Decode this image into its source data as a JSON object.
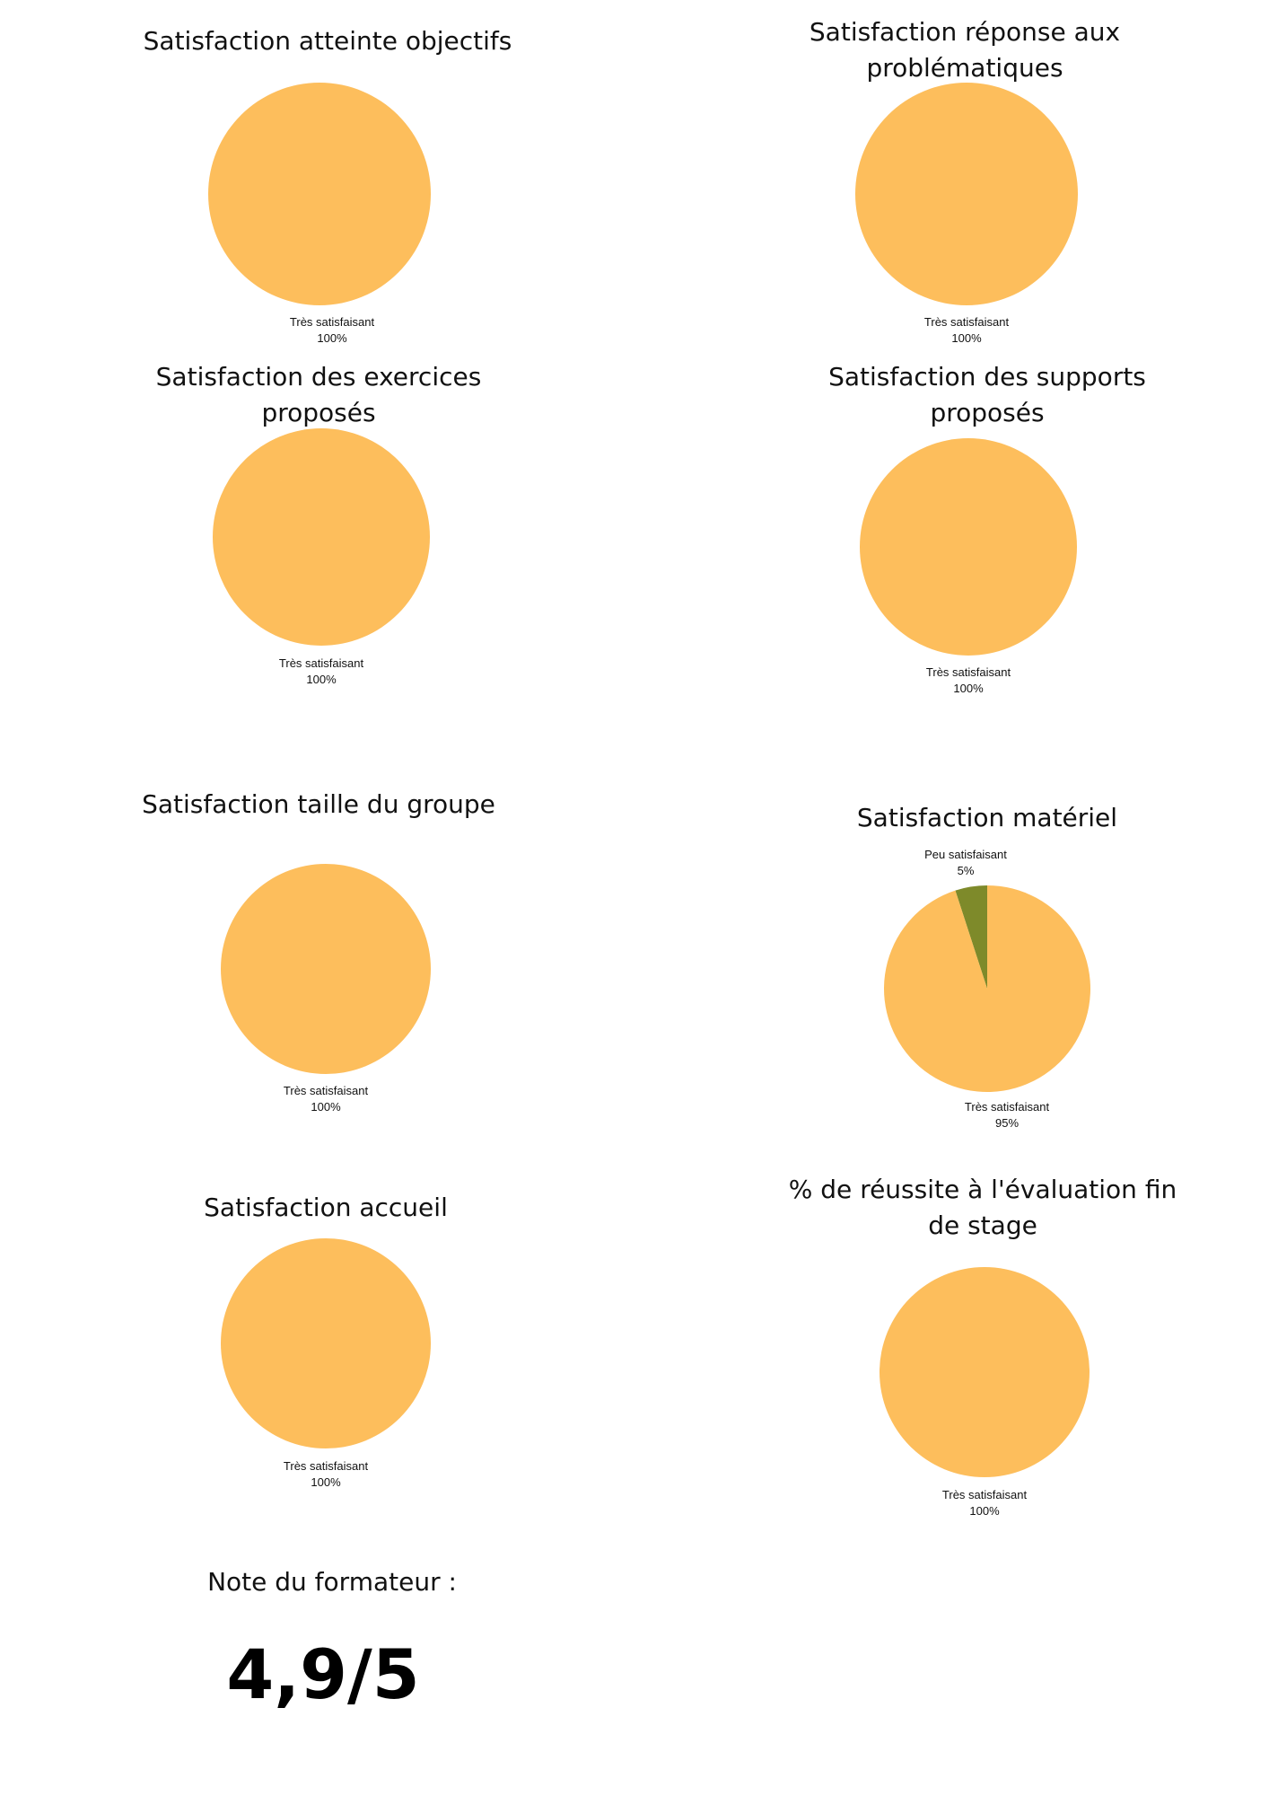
{
  "colors": {
    "tres_satisfaisant": "#FDBE5C",
    "peu_satisfaisant": "#7E8A2A"
  },
  "chart_data": [
    {
      "type": "pie",
      "title": "Satisfaction atteinte objectifs",
      "slices": [
        {
          "label": "Très satisfaisant",
          "value": 100,
          "value_label": "100%",
          "color": "#FDBE5C"
        }
      ]
    },
    {
      "type": "pie",
      "title": "Satisfaction réponse aux problématiques",
      "slices": [
        {
          "label": "Très satisfaisant",
          "value": 100,
          "value_label": "100%",
          "color": "#FDBE5C"
        }
      ]
    },
    {
      "type": "pie",
      "title": "Satisfaction des exercices proposés",
      "slices": [
        {
          "label": "Très satisfaisant",
          "value": 100,
          "value_label": "100%",
          "color": "#FDBE5C"
        }
      ]
    },
    {
      "type": "pie",
      "title": "Satisfaction des supports proposés",
      "slices": [
        {
          "label": "Très satisfaisant",
          "value": 100,
          "value_label": "100%",
          "color": "#FDBE5C"
        }
      ]
    },
    {
      "type": "pie",
      "title": "Satisfaction taille du groupe",
      "slices": [
        {
          "label": "Très satisfaisant",
          "value": 100,
          "value_label": "100%",
          "color": "#FDBE5C"
        }
      ]
    },
    {
      "type": "pie",
      "title": "Satisfaction matériel",
      "slices": [
        {
          "label": "Peu satisfaisant",
          "value": 5,
          "value_label": "5%",
          "color": "#7E8A2A"
        },
        {
          "label": "Très satisfaisant",
          "value": 95,
          "value_label": "95%",
          "color": "#FDBE5C"
        }
      ]
    },
    {
      "type": "pie",
      "title": "Satisfaction accueil",
      "slices": [
        {
          "label": "Très satisfaisant",
          "value": 100,
          "value_label": "100%",
          "color": "#FDBE5C"
        }
      ]
    },
    {
      "type": "pie",
      "title": "% de réussite à l'évaluation fin de stage",
      "slices": [
        {
          "label": "Très satisfaisant",
          "value": 100,
          "value_label": "100%",
          "color": "#FDBE5C"
        }
      ]
    }
  ],
  "trainer_note": {
    "label": "Note du formateur :",
    "value": "4,9/5"
  }
}
